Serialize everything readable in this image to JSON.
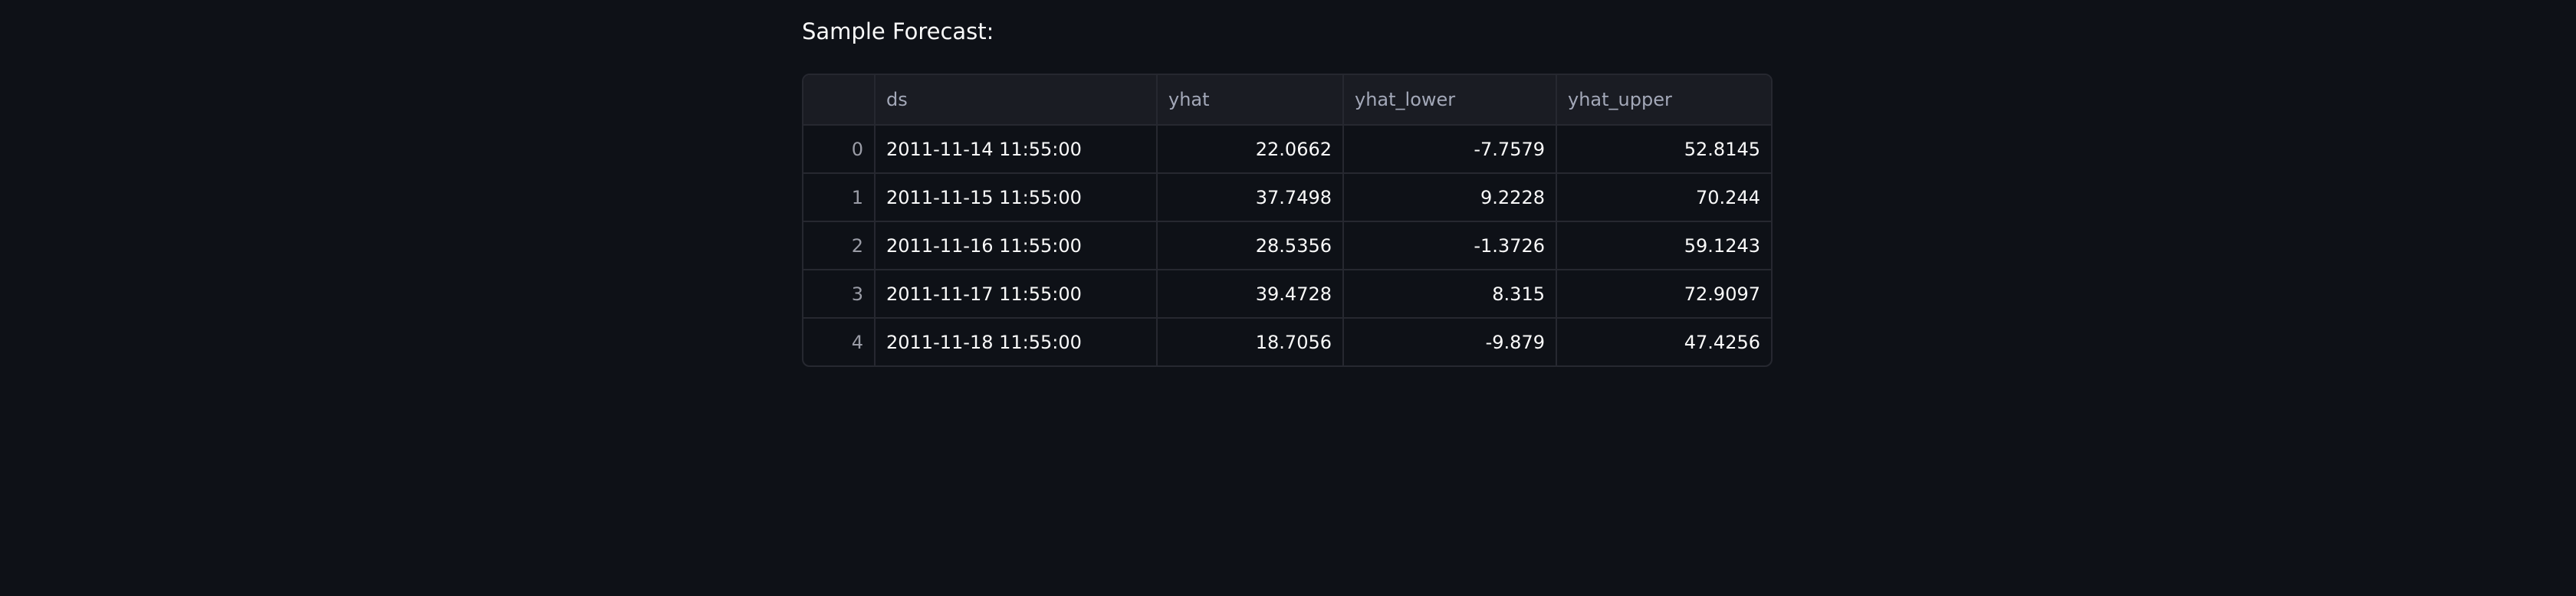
{
  "title": "Sample Forecast:",
  "table": {
    "columns": [
      "ds",
      "yhat",
      "yhat_lower",
      "yhat_upper"
    ],
    "rows": [
      [
        0,
        "2011-11-14 11:55:00",
        22.0662,
        -7.7579,
        52.8145
      ],
      [
        1,
        "2011-11-15 11:55:00",
        37.7498,
        9.2228,
        70.244
      ],
      [
        2,
        "2011-11-16 11:55:00",
        28.5356,
        -1.3726,
        59.1243
      ],
      [
        3,
        "2011-11-17 11:55:00",
        39.4728,
        8.315,
        72.9097
      ],
      [
        4,
        "2011-11-18 11:55:00",
        18.7056,
        -9.879,
        47.4256
      ]
    ]
  }
}
